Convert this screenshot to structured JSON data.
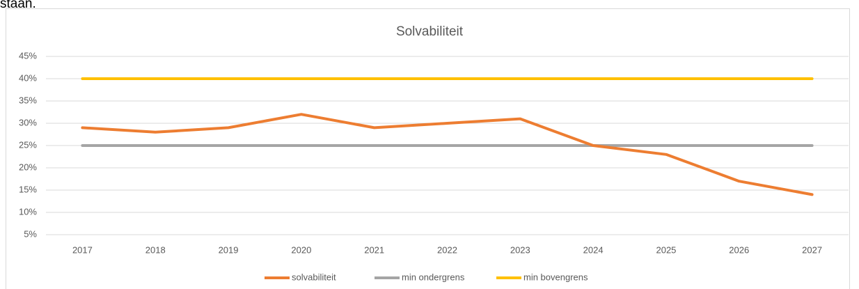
{
  "page_text": "staan.",
  "chart_data": {
    "type": "line",
    "title": "Solvabiliteit",
    "categories": [
      "2017",
      "2018",
      "2019",
      "2020",
      "2021",
      "2022",
      "2023",
      "2024",
      "2025",
      "2026",
      "2027"
    ],
    "series": [
      {
        "name": "solvabiliteit",
        "color": "#ed7d31",
        "values": [
          29,
          28,
          29,
          32,
          29,
          30,
          31,
          25,
          23,
          17,
          14
        ]
      },
      {
        "name": "min ondergrens",
        "color": "#a5a5a5",
        "values": [
          25,
          25,
          25,
          25,
          25,
          25,
          25,
          25,
          25,
          25,
          25
        ]
      },
      {
        "name": "min bovengrens",
        "color": "#ffc000",
        "values": [
          40,
          40,
          40,
          40,
          40,
          40,
          40,
          40,
          40,
          40,
          40
        ]
      }
    ],
    "ylim": [
      5,
      45
    ],
    "yticks": [
      {
        "value": 5,
        "label": "5%"
      },
      {
        "value": 10,
        "label": "10%"
      },
      {
        "value": 15,
        "label": "15%"
      },
      {
        "value": 20,
        "label": "20%"
      },
      {
        "value": 25,
        "label": "25%"
      },
      {
        "value": 30,
        "label": "30%"
      },
      {
        "value": 35,
        "label": "35%"
      },
      {
        "value": 40,
        "label": "40%"
      },
      {
        "value": 45,
        "label": "45%"
      }
    ],
    "grid": true,
    "legend": "bottom"
  }
}
